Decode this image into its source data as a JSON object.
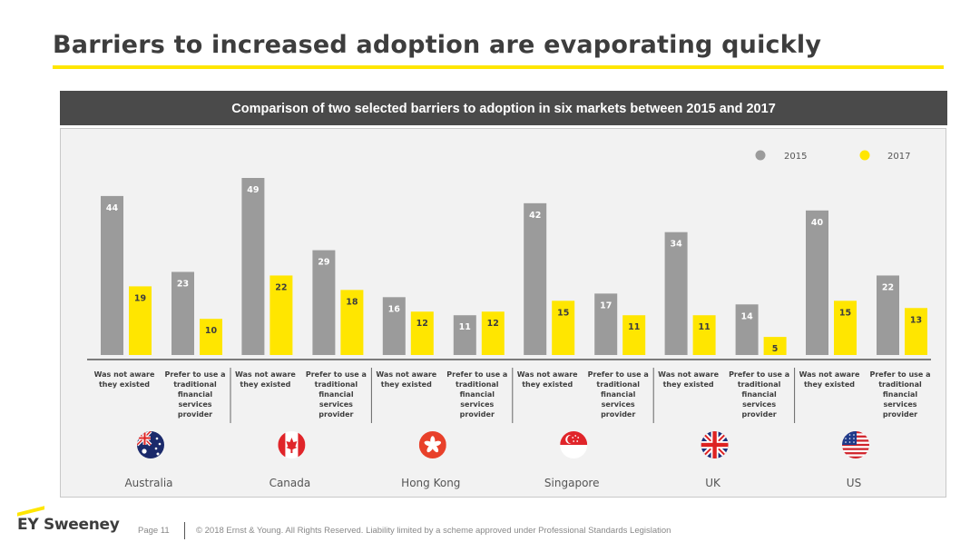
{
  "title": "Barriers to increased adoption are evaporating quickly",
  "colors": {
    "accent": "#ffe600",
    "series_2015": "#9b9b9b",
    "series_2017": "#ffe600"
  },
  "chart_data": {
    "type": "bar",
    "title": "Comparison of two selected barriers to adoption in six markets between 2015 and 2017",
    "legend_position": "top-right",
    "grid": false,
    "ylim": [
      0,
      50
    ],
    "categories": [
      "Was not aware they existed",
      "Prefer to use a traditional financial services provider"
    ],
    "markets": [
      {
        "name": "Australia",
        "flag_icon": "australia-flag-icon",
        "values_2015": [
          44,
          23
        ],
        "values_2017": [
          19,
          10
        ]
      },
      {
        "name": "Canada",
        "flag_icon": "canada-flag-icon",
        "values_2015": [
          49,
          29
        ],
        "values_2017": [
          22,
          18
        ]
      },
      {
        "name": "Hong Kong",
        "flag_icon": "hong-kong-flag-icon",
        "values_2015": [
          16,
          11
        ],
        "values_2017": [
          12,
          12
        ]
      },
      {
        "name": "Singapore",
        "flag_icon": "singapore-flag-icon",
        "values_2015": [
          42,
          17
        ],
        "values_2017": [
          15,
          11
        ]
      },
      {
        "name": "UK",
        "flag_icon": "uk-flag-icon",
        "values_2015": [
          34,
          14
        ],
        "values_2017": [
          11,
          5
        ]
      },
      {
        "name": "US",
        "flag_icon": "us-flag-icon",
        "values_2015": [
          40,
          22
        ],
        "values_2017": [
          15,
          13
        ]
      }
    ],
    "series": [
      {
        "name": "2015",
        "color": "#9b9b9b"
      },
      {
        "name": "2017",
        "color": "#ffe600"
      }
    ]
  },
  "footer": {
    "logo": "EY Sweeney",
    "page": "Page 11",
    "copyright": "© 2018 Ernst & Young. All Rights Reserved. Liability limited by a scheme approved under Professional Standards Legislation"
  }
}
